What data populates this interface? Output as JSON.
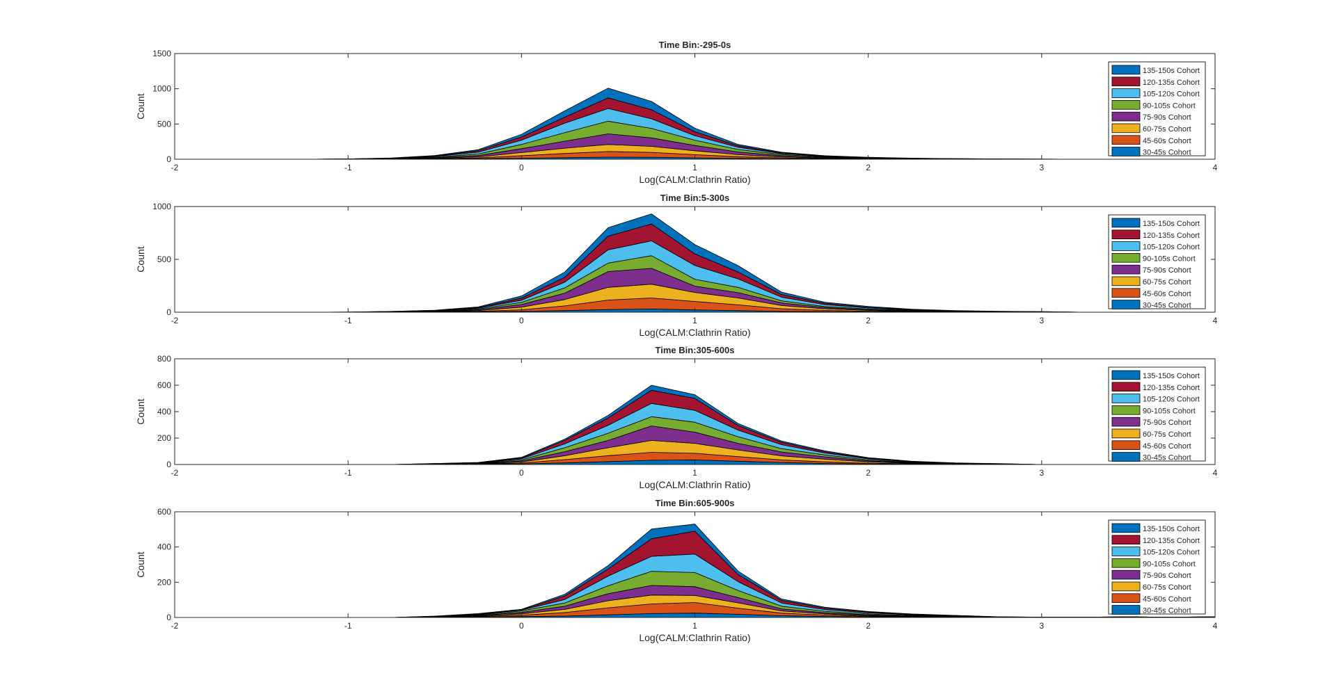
{
  "chart_data": [
    {
      "type": "area",
      "stacked": true,
      "title": "Time Bin:-295-0s",
      "xlabel": "Log(CALM:Clathrin Ratio)",
      "ylabel": "Count",
      "xlim": [
        -2,
        4
      ],
      "ylim": [
        0,
        1500
      ],
      "xticks": [
        "-2",
        "-1",
        "0",
        "1",
        "2",
        "3",
        "4"
      ],
      "yticks": [
        "0",
        "500",
        "1000",
        "1500"
      ],
      "ytick_values": [
        0,
        500,
        1000,
        1500
      ],
      "legend_position": "top-right",
      "x": [
        -2,
        -1.75,
        -1.5,
        -1.25,
        -1,
        -0.75,
        -0.5,
        -0.25,
        0,
        0.25,
        0.5,
        0.75,
        1,
        1.25,
        1.5,
        1.75,
        2,
        2.25,
        2.5,
        2.75,
        3,
        3.25,
        3.5,
        3.75,
        4
      ],
      "series": [
        {
          "name": "30-45s Cohort",
          "color": "#0072BD",
          "values": [
            0,
            0,
            0,
            0,
            0,
            1,
            3,
            8,
            15,
            22,
            30,
            28,
            20,
            12,
            7,
            4,
            2,
            1,
            1,
            0,
            0,
            0,
            0,
            0,
            0
          ]
        },
        {
          "name": "45-60s Cohort",
          "color": "#D95319",
          "values": [
            0,
            0,
            0,
            0,
            0,
            2,
            5,
            12,
            35,
            60,
            80,
            70,
            45,
            25,
            12,
            6,
            3,
            2,
            1,
            0,
            0,
            0,
            0,
            0,
            0
          ]
        },
        {
          "name": "60-75s Cohort",
          "color": "#EDB120",
          "values": [
            0,
            0,
            0,
            0,
            1,
            2,
            6,
            14,
            45,
            75,
            100,
            85,
            55,
            28,
            14,
            7,
            4,
            2,
            1,
            1,
            0,
            0,
            0,
            0,
            0
          ]
        },
        {
          "name": "75-90s Cohort",
          "color": "#7E2F8E",
          "values": [
            0,
            0,
            0,
            0,
            1,
            3,
            8,
            18,
            55,
            100,
            150,
            120,
            75,
            38,
            18,
            9,
            5,
            3,
            2,
            1,
            1,
            0,
            0,
            0,
            0
          ]
        },
        {
          "name": "90-105s Cohort",
          "color": "#77AC30",
          "values": [
            0,
            0,
            0,
            0,
            1,
            3,
            9,
            22,
            60,
            120,
            180,
            135,
            75,
            35,
            16,
            8,
            4,
            2,
            1,
            1,
            0,
            0,
            0,
            0,
            0
          ]
        },
        {
          "name": "105-120s Cohort",
          "color": "#4DBEEE",
          "values": [
            0,
            0,
            0,
            0,
            1,
            3,
            9,
            26,
            60,
            135,
            180,
            135,
            65,
            32,
            14,
            7,
            4,
            2,
            1,
            1,
            1,
            0,
            0,
            0,
            0
          ]
        },
        {
          "name": "120-135s Cohort",
          "color": "#A2142F",
          "values": [
            0,
            0,
            0,
            0,
            1,
            2,
            7,
            20,
            45,
            85,
            150,
            130,
            55,
            20,
            10,
            5,
            3,
            2,
            1,
            1,
            0,
            0,
            0,
            0,
            0
          ]
        },
        {
          "name": "135-150s Cohort",
          "color": "#0072BD",
          "values": [
            0,
            0,
            0,
            0,
            1,
            2,
            5,
            15,
            38,
            90,
            140,
            117,
            50,
            20,
            9,
            4,
            3,
            2,
            1,
            0,
            0,
            0,
            0,
            0,
            0
          ]
        }
      ]
    },
    {
      "type": "area",
      "stacked": true,
      "title": "Time Bin:5-300s",
      "xlabel": "Log(CALM:Clathrin Ratio)",
      "ylabel": "Count",
      "xlim": [
        -2,
        4
      ],
      "ylim": [
        0,
        1000
      ],
      "xticks": [
        "-2",
        "-1",
        "0",
        "1",
        "2",
        "3",
        "4"
      ],
      "yticks": [
        "0",
        "500",
        "1000"
      ],
      "ytick_values": [
        0,
        500,
        1000
      ],
      "legend_position": "top-right",
      "x": [
        -2,
        -1.75,
        -1.5,
        -1.25,
        -1,
        -0.75,
        -0.5,
        -0.25,
        0,
        0.25,
        0.5,
        0.75,
        1,
        1.25,
        1.5,
        1.75,
        2,
        2.25,
        2.5,
        2.75,
        3,
        3.25,
        3.5,
        3.75,
        4
      ],
      "series": [
        {
          "name": "30-45s Cohort",
          "color": "#0072BD",
          "values": [
            0,
            0,
            0,
            0,
            0,
            1,
            2,
            4,
            8,
            15,
            25,
            30,
            22,
            15,
            8,
            5,
            3,
            2,
            1,
            1,
            0,
            0,
            0,
            0,
            0
          ]
        },
        {
          "name": "45-60s Cohort",
          "color": "#D95319",
          "values": [
            0,
            0,
            0,
            0,
            0,
            1,
            2,
            5,
            15,
            45,
            90,
            105,
            80,
            55,
            25,
            12,
            6,
            3,
            2,
            1,
            1,
            0,
            0,
            0,
            0
          ]
        },
        {
          "name": "60-75s Cohort",
          "color": "#EDB120",
          "values": [
            0,
            0,
            0,
            0,
            0,
            1,
            3,
            7,
            25,
            60,
            120,
            130,
            85,
            65,
            30,
            15,
            8,
            4,
            2,
            1,
            1,
            0,
            0,
            0,
            0
          ]
        },
        {
          "name": "75-90s Cohort",
          "color": "#7E2F8E",
          "values": [
            0,
            0,
            0,
            0,
            0,
            1,
            3,
            8,
            25,
            60,
            150,
            150,
            60,
            50,
            25,
            12,
            7,
            4,
            2,
            1,
            1,
            0,
            0,
            0,
            0
          ]
        },
        {
          "name": "90-105s Cohort",
          "color": "#77AC30",
          "values": [
            0,
            0,
            0,
            0,
            0,
            1,
            2,
            6,
            20,
            50,
            80,
            120,
            65,
            50,
            20,
            10,
            6,
            3,
            2,
            1,
            0,
            0,
            0,
            0,
            0
          ]
        },
        {
          "name": "105-120s Cohort",
          "color": "#4DBEEE",
          "values": [
            0,
            0,
            0,
            0,
            1,
            1,
            3,
            8,
            20,
            55,
            125,
            140,
            130,
            80,
            35,
            18,
            10,
            5,
            3,
            2,
            1,
            0,
            0,
            0,
            0
          ]
        },
        {
          "name": "120-135s Cohort",
          "color": "#A2142F",
          "values": [
            0,
            0,
            0,
            0,
            0,
            1,
            2,
            6,
            20,
            45,
            130,
            160,
            110,
            65,
            25,
            12,
            7,
            4,
            2,
            1,
            1,
            0,
            0,
            0,
            0
          ]
        },
        {
          "name": "135-150s Cohort",
          "color": "#0072BD",
          "values": [
            0,
            0,
            0,
            0,
            0,
            1,
            2,
            6,
            20,
            50,
            80,
            95,
            88,
            60,
            22,
            11,
            8,
            4,
            2,
            1,
            1,
            0,
            0,
            0,
            0
          ]
        }
      ]
    },
    {
      "type": "area",
      "stacked": true,
      "title": "Time Bin:305-600s",
      "xlabel": "Log(CALM:Clathrin Ratio)",
      "ylabel": "Count",
      "xlim": [
        -2,
        4
      ],
      "ylim": [
        0,
        800
      ],
      "xticks": [
        "-2",
        "-1",
        "0",
        "1",
        "2",
        "3",
        "4"
      ],
      "yticks": [
        "0",
        "200",
        "400",
        "600",
        "800"
      ],
      "ytick_values": [
        0,
        200,
        400,
        600,
        800
      ],
      "legend_position": "top-right",
      "x": [
        -2,
        -1.75,
        -1.5,
        -1.25,
        -1,
        -0.75,
        -0.5,
        -0.25,
        0,
        0.25,
        0.5,
        0.75,
        1,
        1.25,
        1.5,
        1.75,
        2,
        2.25,
        2.5,
        2.75,
        3,
        3.25,
        3.5,
        3.75,
        4
      ],
      "series": [
        {
          "name": "30-45s Cohort",
          "color": "#0072BD",
          "values": [
            0,
            0,
            0,
            0,
            0,
            0,
            1,
            2,
            5,
            12,
            22,
            32,
            35,
            25,
            15,
            8,
            4,
            2,
            1,
            0,
            0,
            0,
            0,
            0,
            0
          ]
        },
        {
          "name": "45-60s Cohort",
          "color": "#D95319",
          "values": [
            0,
            0,
            0,
            0,
            0,
            0,
            1,
            2,
            6,
            25,
            45,
            60,
            50,
            35,
            20,
            12,
            6,
            3,
            1,
            1,
            0,
            0,
            0,
            0,
            0
          ]
        },
        {
          "name": "60-75s Cohort",
          "color": "#EDB120",
          "values": [
            0,
            0,
            0,
            0,
            0,
            0,
            1,
            2,
            8,
            30,
            60,
            90,
            75,
            50,
            30,
            20,
            10,
            4,
            2,
            1,
            0,
            0,
            0,
            0,
            0
          ]
        },
        {
          "name": "75-90s Cohort",
          "color": "#7E2F8E",
          "values": [
            0,
            0,
            0,
            0,
            0,
            0,
            1,
            2,
            8,
            30,
            55,
            110,
            85,
            50,
            30,
            18,
            8,
            4,
            2,
            1,
            0,
            0,
            0,
            0,
            0
          ]
        },
        {
          "name": "90-105s Cohort",
          "color": "#77AC30",
          "values": [
            0,
            0,
            0,
            0,
            0,
            0,
            1,
            2,
            8,
            30,
            55,
            70,
            75,
            50,
            25,
            14,
            7,
            3,
            2,
            1,
            0,
            0,
            0,
            0,
            0
          ]
        },
        {
          "name": "105-120s Cohort",
          "color": "#4DBEEE",
          "values": [
            0,
            0,
            0,
            0,
            0,
            0,
            1,
            2,
            8,
            30,
            60,
            100,
            90,
            50,
            30,
            15,
            8,
            4,
            2,
            1,
            0,
            0,
            0,
            0,
            0
          ]
        },
        {
          "name": "120-135s Cohort",
          "color": "#A2142F",
          "values": [
            0,
            0,
            0,
            0,
            0,
            0,
            1,
            2,
            6,
            25,
            55,
            100,
            90,
            35,
            18,
            10,
            5,
            3,
            1,
            1,
            0,
            0,
            0,
            0,
            0
          ]
        },
        {
          "name": "135-150s Cohort",
          "color": "#0072BD",
          "values": [
            0,
            0,
            0,
            0,
            0,
            0,
            1,
            2,
            5,
            10,
            20,
            38,
            28,
            15,
            10,
            6,
            4,
            2,
            1,
            1,
            0,
            0,
            0,
            0,
            0
          ]
        }
      ]
    },
    {
      "type": "area",
      "stacked": true,
      "title": "Time Bin:605-900s",
      "xlabel": "Log(CALM:Clathrin Ratio)",
      "ylabel": "Count",
      "xlim": [
        -2,
        4
      ],
      "ylim": [
        0,
        600
      ],
      "xticks": [
        "-2",
        "-1",
        "0",
        "1",
        "2",
        "3",
        "4"
      ],
      "yticks": [
        "0",
        "200",
        "400",
        "600"
      ],
      "ytick_values": [
        0,
        200,
        400,
        600
      ],
      "legend_position": "top-right",
      "x": [
        -2,
        -1.75,
        -1.5,
        -1.25,
        -1,
        -0.75,
        -0.5,
        -0.25,
        0,
        0.25,
        0.5,
        0.75,
        1,
        1.25,
        1.5,
        1.75,
        2,
        2.25,
        2.5,
        2.75,
        3,
        3.25,
        3.5,
        3.75,
        4
      ],
      "series": [
        {
          "name": "30-45s Cohort",
          "color": "#0072BD",
          "values": [
            0,
            0,
            0,
            0,
            0,
            0,
            1,
            2,
            5,
            8,
            15,
            22,
            25,
            18,
            10,
            6,
            3,
            2,
            1,
            0,
            0,
            0,
            0,
            0,
            1
          ]
        },
        {
          "name": "45-60s Cohort",
          "color": "#D95319",
          "values": [
            0,
            0,
            0,
            0,
            0,
            0,
            1,
            3,
            8,
            20,
            40,
            55,
            60,
            35,
            15,
            8,
            4,
            2,
            1,
            0,
            0,
            0,
            0,
            0,
            1
          ]
        },
        {
          "name": "60-75s Cohort",
          "color": "#EDB120",
          "values": [
            0,
            0,
            0,
            0,
            0,
            0,
            1,
            3,
            8,
            18,
            40,
            50,
            40,
            30,
            12,
            6,
            4,
            2,
            1,
            0,
            0,
            0,
            0,
            1,
            1
          ]
        },
        {
          "name": "75-90s Cohort",
          "color": "#7E2F8E",
          "values": [
            0,
            0,
            0,
            0,
            0,
            0,
            1,
            3,
            8,
            18,
            40,
            55,
            50,
            30,
            12,
            7,
            4,
            2,
            1,
            0,
            0,
            1,
            1,
            1,
            0
          ]
        },
        {
          "name": "90-105s Cohort",
          "color": "#77AC30",
          "values": [
            0,
            0,
            0,
            0,
            0,
            0,
            1,
            3,
            8,
            18,
            45,
            80,
            80,
            40,
            15,
            8,
            5,
            3,
            2,
            1,
            0,
            1,
            1,
            0,
            0
          ]
        },
        {
          "name": "105-120s Cohort",
          "color": "#4DBEEE",
          "values": [
            0,
            0,
            0,
            0,
            0,
            0,
            1,
            3,
            5,
            20,
            55,
            85,
            105,
            50,
            18,
            10,
            6,
            4,
            3,
            2,
            1,
            0,
            1,
            0,
            0
          ]
        },
        {
          "name": "120-135s Cohort",
          "color": "#A2142F",
          "values": [
            0,
            0,
            0,
            0,
            0,
            0,
            1,
            3,
            2,
            20,
            40,
            100,
            130,
            40,
            15,
            8,
            5,
            3,
            2,
            1,
            1,
            0,
            0,
            0,
            0
          ]
        },
        {
          "name": "135-150s Cohort",
          "color": "#0072BD",
          "values": [
            0,
            0,
            0,
            0,
            0,
            0,
            1,
            2,
            2,
            10,
            20,
            55,
            40,
            20,
            8,
            5,
            3,
            2,
            1,
            0,
            0,
            0,
            0,
            0,
            0
          ]
        }
      ]
    }
  ]
}
